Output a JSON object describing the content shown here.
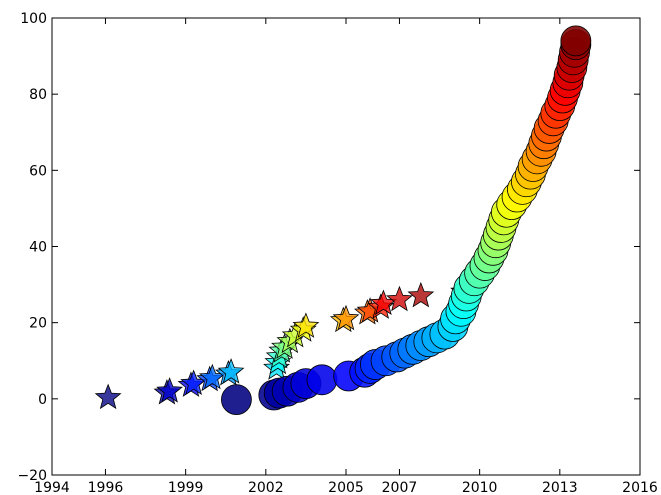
{
  "chart_data": {
    "type": "scatter",
    "title": "",
    "xlabel": "",
    "ylabel": "",
    "xlim": [
      1994,
      2016
    ],
    "ylim": [
      -20,
      100
    ],
    "x_ticks": [
      1994,
      1996,
      1999,
      2002,
      2005,
      2007,
      2010,
      2013,
      2016
    ],
    "x_tick_labels": [
      "1994",
      "1996",
      "1999",
      "2002",
      "2005",
      "2007",
      "2010",
      "2013",
      "2016"
    ],
    "y_ticks": [
      -20,
      0,
      20,
      40,
      60,
      80,
      100
    ],
    "y_tick_labels": [
      "−20",
      "0",
      "20",
      "40",
      "60",
      "80",
      "100"
    ],
    "grid": false,
    "legend": "none",
    "color_map": "jet",
    "series": [
      {
        "marker": "star",
        "points": [
          [
            1996.1,
            0.3
          ],
          [
            1998.3,
            1.5
          ],
          [
            1998.4,
            2.0
          ],
          [
            1999.2,
            3.5
          ],
          [
            1999.3,
            4.0
          ],
          [
            1999.9,
            5.0
          ],
          [
            2000.0,
            5.5
          ],
          [
            2000.6,
            6.5
          ],
          [
            2000.7,
            7.0
          ],
          [
            2002.4,
            8.0
          ],
          [
            2002.45,
            9.5
          ],
          [
            2002.5,
            11.0
          ],
          [
            2002.6,
            12.5
          ],
          [
            2002.7,
            13.5
          ],
          [
            2002.9,
            15.0
          ],
          [
            2003.1,
            16.5
          ],
          [
            2003.4,
            18.0
          ],
          [
            2003.5,
            19.0
          ],
          [
            2004.9,
            20.5
          ],
          [
            2005.0,
            21.0
          ],
          [
            2005.8,
            22.5
          ],
          [
            2005.9,
            23.0
          ],
          [
            2006.3,
            24.0
          ],
          [
            2006.4,
            25.0
          ],
          [
            2007.0,
            26.0
          ],
          [
            2007.8,
            27.0
          ],
          [
            2009.4,
            28.0
          ]
        ]
      },
      {
        "marker": "circle",
        "points": [
          [
            2000.9,
            -0.2
          ],
          [
            2002.3,
            1.0
          ],
          [
            2002.5,
            1.5
          ],
          [
            2002.8,
            2.0
          ],
          [
            2003.2,
            3.0
          ],
          [
            2003.5,
            4.0
          ],
          [
            2004.1,
            5.0
          ],
          [
            2005.1,
            6.0
          ],
          [
            2005.7,
            7.0
          ],
          [
            2005.9,
            8.0
          ],
          [
            2006.1,
            9.0
          ],
          [
            2006.5,
            10.0
          ],
          [
            2006.9,
            11.0
          ],
          [
            2007.2,
            12.0
          ],
          [
            2007.5,
            13.0
          ],
          [
            2007.8,
            14.0
          ],
          [
            2008.1,
            15.0
          ],
          [
            2008.4,
            16.0
          ],
          [
            2008.7,
            17.0
          ],
          [
            2009.0,
            19.0
          ],
          [
            2009.1,
            21.0
          ],
          [
            2009.3,
            23.0
          ],
          [
            2009.4,
            25.0
          ],
          [
            2009.5,
            27.0
          ],
          [
            2009.6,
            29.0
          ],
          [
            2009.8,
            31.0
          ],
          [
            2010.0,
            33.0
          ],
          [
            2010.2,
            35.0
          ],
          [
            2010.35,
            37.0
          ],
          [
            2010.5,
            39.0
          ],
          [
            2010.6,
            41.0
          ],
          [
            2010.7,
            43.0
          ],
          [
            2010.8,
            45.0
          ],
          [
            2010.9,
            47.0
          ],
          [
            2011.0,
            49.0
          ],
          [
            2011.2,
            51.0
          ],
          [
            2011.4,
            53.0
          ],
          [
            2011.6,
            55.0
          ],
          [
            2011.75,
            57.0
          ],
          [
            2011.9,
            59.0
          ],
          [
            2012.0,
            61.0
          ],
          [
            2012.15,
            63.0
          ],
          [
            2012.3,
            65.0
          ],
          [
            2012.4,
            67.0
          ],
          [
            2012.5,
            69.0
          ],
          [
            2012.6,
            71.0
          ],
          [
            2012.75,
            73.0
          ],
          [
            2012.85,
            75.0
          ],
          [
            2013.0,
            77.0
          ],
          [
            2013.1,
            79.0
          ],
          [
            2013.2,
            81.0
          ],
          [
            2013.3,
            83.0
          ],
          [
            2013.35,
            85.0
          ],
          [
            2013.45,
            87.0
          ],
          [
            2013.5,
            89.0
          ],
          [
            2013.55,
            91.0
          ],
          [
            2013.6,
            93.0
          ],
          [
            2013.6,
            94.0
          ]
        ]
      }
    ]
  }
}
